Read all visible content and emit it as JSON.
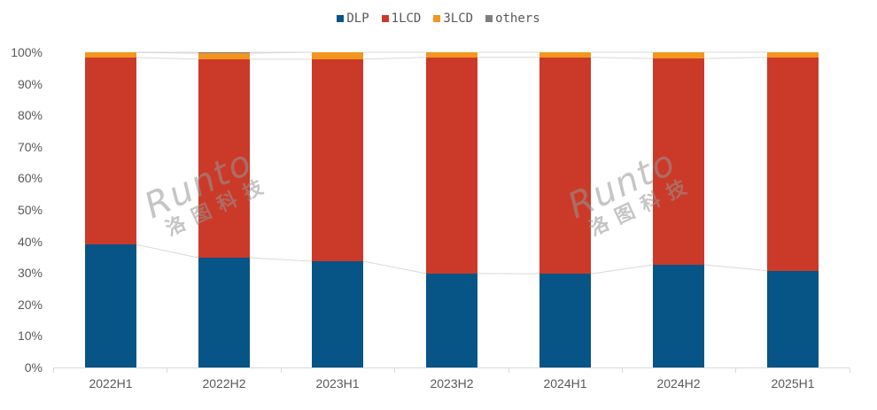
{
  "chart_data": {
    "type": "bar",
    "stacked": true,
    "percent": true,
    "title": "",
    "xlabel": "",
    "ylabel": "",
    "ylim": [
      0,
      100
    ],
    "yticks": [
      "0%",
      "10%",
      "20%",
      "30%",
      "40%",
      "50%",
      "60%",
      "70%",
      "80%",
      "90%",
      "100%"
    ],
    "categories": [
      "2022H1",
      "2022H2",
      "2023H1",
      "2023H2",
      "2024H1",
      "2024H2",
      "2025H1"
    ],
    "series": [
      {
        "name": "DLP",
        "color": "#075486",
        "values": [
          39.0,
          34.8,
          33.7,
          29.8,
          29.7,
          32.6,
          30.7
        ]
      },
      {
        "name": "1LCD",
        "color": "#cb3a28",
        "values": [
          59.3,
          63.0,
          64.1,
          68.6,
          68.7,
          65.4,
          67.7
        ]
      },
      {
        "name": "3LCD",
        "color": "#f2961f",
        "values": [
          1.6,
          1.9,
          2.2,
          1.6,
          1.6,
          2.0,
          1.6
        ]
      },
      {
        "name": "others",
        "color": "#7f7f7f",
        "values": [
          0.1,
          0.3,
          0.0,
          0.0,
          0.0,
          0.0,
          0.0
        ]
      }
    ],
    "legend_position": "top",
    "grid": false,
    "series_lines": true
  },
  "watermark": {
    "en": "Runto",
    "cn": "洛图科技"
  }
}
